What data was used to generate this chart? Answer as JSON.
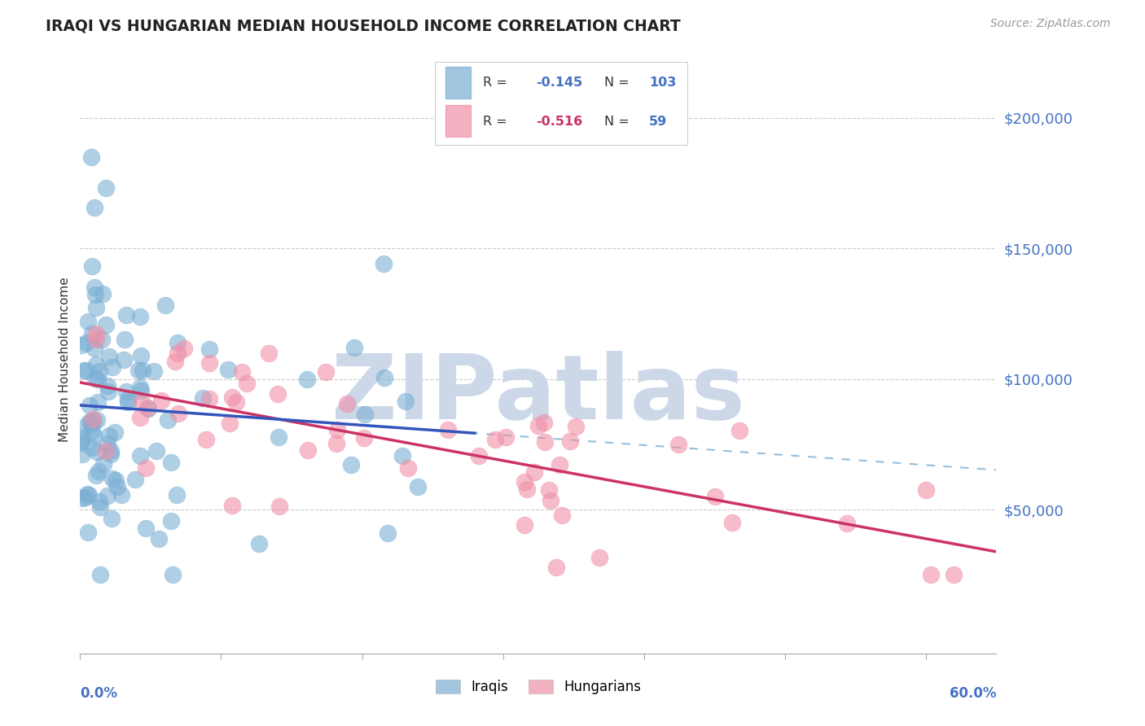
{
  "title": "IRAQI VS HUNGARIAN MEDIAN HOUSEHOLD INCOME CORRELATION CHART",
  "source": "Source: ZipAtlas.com",
  "ylabel": "Median Household Income",
  "y_tick_labels": [
    "$50,000",
    "$100,000",
    "$150,000",
    "$200,000"
  ],
  "y_tick_values": [
    50000,
    100000,
    150000,
    200000
  ],
  "ylim": [
    -5000,
    220000
  ],
  "xlim": [
    0.0,
    0.65
  ],
  "iraqis_color": "#7bafd4",
  "iraqis_edge_color": "#5a90bb",
  "hungarians_color": "#f090a8",
  "hungarians_edge_color": "#d06080",
  "trendline_iraqis_color": "#3355bb",
  "trendline_hungarians_color": "#cc3366",
  "trendline_iraqis_dashed_color": "#7bafd4",
  "background_color": "#ffffff",
  "grid_color": "#cccccc",
  "watermark_color": "#ccd8e8",
  "title_color": "#222222",
  "axis_label_color": "#4472c4",
  "source_color": "#999999",
  "legend_R_color": "#4472c4",
  "legend_N_color": "#4472c4",
  "legend_R2_color": "#cc3366",
  "legend_N2_color": "#4472c4"
}
